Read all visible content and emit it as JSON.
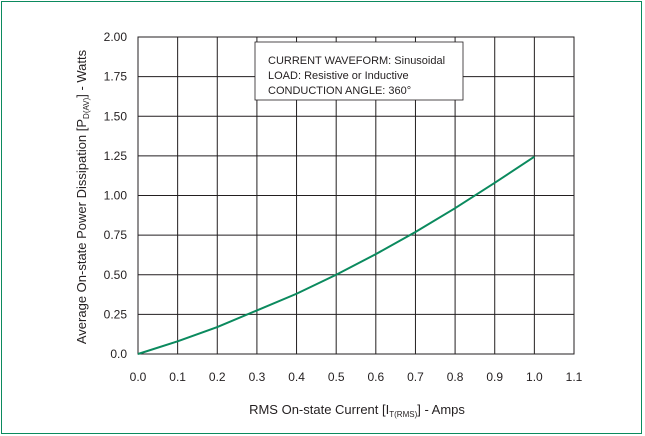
{
  "chart_data": {
    "type": "line",
    "title": "",
    "xlabel": {
      "main": "RMS On-state Current [I",
      "sub": "T(RMS)",
      "tail": "] - Amps"
    },
    "ylabel": {
      "main": "Average On-state Power Dissipation [P",
      "sub": "D(AV)",
      "tail": "] - Watts"
    },
    "xlim": [
      0.0,
      1.1
    ],
    "ylim": [
      0.0,
      2.0
    ],
    "x_ticks": [
      "0.0",
      "0.1",
      "0.2",
      "0.3",
      "0.4",
      "0.5",
      "0.6",
      "0.7",
      "0.8",
      "0.9",
      "1.0",
      "1.1"
    ],
    "y_ticks": [
      "0.0",
      "0.25",
      "0.50",
      "0.75",
      "1.00",
      "1.25",
      "1.50",
      "1.75",
      "2.00"
    ],
    "grid": true,
    "annotations": [
      "CURRENT WAVEFORM: Sinusoidal",
      "LOAD: Resistive or Inductive",
      "CONDUCTION ANGLE: 360°"
    ],
    "series": [
      {
        "color": "#0b8a5e",
        "x": [
          0.0,
          0.1,
          0.2,
          0.3,
          0.4,
          0.5,
          0.6,
          0.7,
          0.8,
          0.9,
          1.0
        ],
        "y": [
          0.0,
          0.08,
          0.17,
          0.275,
          0.38,
          0.5,
          0.63,
          0.77,
          0.92,
          1.08,
          1.245
        ]
      }
    ]
  }
}
